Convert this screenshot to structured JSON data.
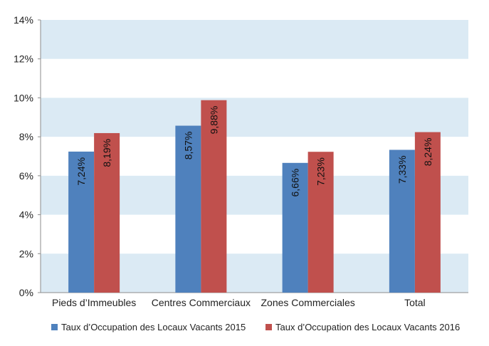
{
  "chart_data": {
    "type": "bar",
    "categories": [
      "Pieds d’Immeubles",
      "Centres Commerciaux",
      "Zones Commerciales",
      "Total"
    ],
    "series": [
      {
        "name": "Taux d’Occupation des Locaux Vacants 2015",
        "color": "#4f81bd",
        "values": [
          7.24,
          8.57,
          6.66,
          7.33
        ],
        "labels": [
          "7,24%",
          "8,57%",
          "6,66%",
          "7,33%"
        ]
      },
      {
        "name": "Taux d’Occupation des Locaux Vacants 2016",
        "color": "#c0504d",
        "values": [
          8.19,
          9.88,
          7.23,
          8.24
        ],
        "labels": [
          "8,19%",
          "9,88%",
          "7,23%",
          "8,24%"
        ]
      }
    ],
    "ylim": [
      0,
      14
    ],
    "y_ticks": [
      0,
      2,
      4,
      6,
      8,
      10,
      12,
      14
    ],
    "y_tick_labels": [
      "0%",
      "2%",
      "4%",
      "6%",
      "8%",
      "10%",
      "12%",
      "14%"
    ],
    "grid": "alternating horizontal bands",
    "band_color": "#dbeaf4",
    "legend_position": "bottom"
  }
}
